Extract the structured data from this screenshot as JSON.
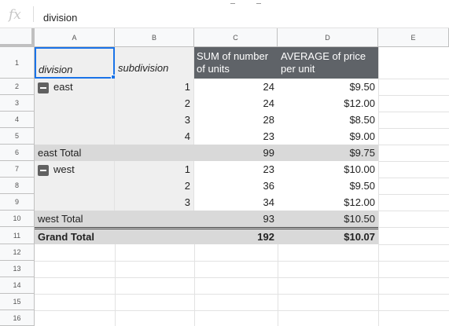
{
  "formula_bar": {
    "fx_label": "fx",
    "content": "division"
  },
  "columns": [
    "A",
    "B",
    "C",
    "D",
    "E"
  ],
  "rows": [
    "1",
    "2",
    "3",
    "4",
    "5",
    "6",
    "7",
    "8",
    "9",
    "10",
    "11",
    "12",
    "13",
    "14",
    "15",
    "16"
  ],
  "pivot": {
    "headers": {
      "division": "division",
      "subdivision": "subdivision",
      "sum_units": "SUM of number of units",
      "avg_price": "AVERAGE of price per unit"
    },
    "groups": [
      {
        "name": "east",
        "rows": [
          {
            "sub": "1",
            "units": "24",
            "price": "$9.50"
          },
          {
            "sub": "2",
            "units": "24",
            "price": "$12.00"
          },
          {
            "sub": "3",
            "units": "28",
            "price": "$8.50"
          },
          {
            "sub": "4",
            "units": "23",
            "price": "$9.00"
          }
        ],
        "total_label": "east Total",
        "total_units": "99",
        "total_price": "$9.75"
      },
      {
        "name": "west",
        "rows": [
          {
            "sub": "1",
            "units": "23",
            "price": "$10.00"
          },
          {
            "sub": "2",
            "units": "36",
            "price": "$9.50"
          },
          {
            "sub": "3",
            "units": "34",
            "price": "$12.00"
          }
        ],
        "total_label": "west Total",
        "total_units": "93",
        "total_price": "$10.50"
      }
    ],
    "grand_total": {
      "label": "Grand Total",
      "units": "192",
      "price": "$10.07"
    }
  },
  "colors": {
    "header_dark": "#5f6368",
    "total_bg": "#d9d9d9",
    "group_bg": "#efefef",
    "select_blue": "#1a73e8"
  }
}
